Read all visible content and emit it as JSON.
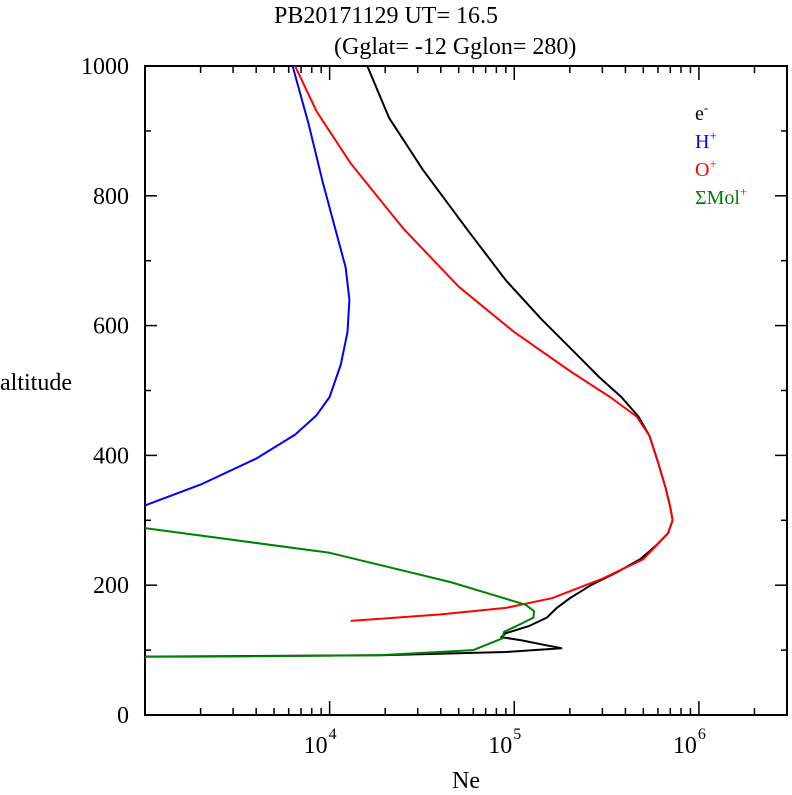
{
  "chart_data": {
    "type": "line",
    "title_line1": "PB20171129   UT=  16.5",
    "title_line2": "(Gglat= -12   Gglon=  280)",
    "xlabel": "Ne",
    "ylabel": "altitude",
    "xscale": "log",
    "xlim": [
      1000,
      3000000
    ],
    "ylim": [
      0,
      1000
    ],
    "y_ticks": [
      "0",
      "200",
      "400",
      "600",
      "800",
      "1000"
    ],
    "x_ticks": [
      {
        "base": "10",
        "exp": "4"
      },
      {
        "base": "10",
        "exp": "5"
      },
      {
        "base": "10",
        "exp": "6"
      }
    ],
    "grid": false,
    "legend_placement": "top-right",
    "series": [
      {
        "name": "e",
        "sup": "-",
        "color": "#000000",
        "points": [
          [
            1000,
            90
          ],
          [
            18000,
            92
          ],
          [
            90000,
            97
          ],
          [
            180000,
            103
          ],
          [
            140000,
            109
          ],
          [
            110000,
            115
          ],
          [
            85000,
            120
          ],
          [
            90000,
            126
          ],
          [
            120000,
            137
          ],
          [
            150000,
            150
          ],
          [
            170000,
            165
          ],
          [
            200000,
            180
          ],
          [
            260000,
            200
          ],
          [
            360000,
            220
          ],
          [
            480000,
            240
          ],
          [
            580000,
            260
          ],
          [
            680000,
            280
          ],
          [
            720000,
            300
          ],
          [
            700000,
            320
          ],
          [
            660000,
            350
          ],
          [
            600000,
            390
          ],
          [
            540000,
            430
          ],
          [
            470000,
            460
          ],
          [
            380000,
            490
          ],
          [
            290000,
            520
          ],
          [
            210000,
            560
          ],
          [
            140000,
            610
          ],
          [
            90000,
            670
          ],
          [
            55000,
            750
          ],
          [
            32000,
            840
          ],
          [
            21000,
            920
          ],
          [
            16000,
            1000
          ]
        ]
      },
      {
        "name": "H",
        "sup": "+",
        "color": "#0000ff",
        "points": [
          [
            1000,
            323
          ],
          [
            2000,
            355
          ],
          [
            4000,
            395
          ],
          [
            6500,
            432
          ],
          [
            8500,
            462
          ],
          [
            10000,
            490
          ],
          [
            11500,
            540
          ],
          [
            12500,
            590
          ],
          [
            12800,
            640
          ],
          [
            12200,
            690
          ],
          [
            10700,
            750
          ],
          [
            9200,
            820
          ],
          [
            7700,
            910
          ],
          [
            6300,
            1000
          ]
        ]
      },
      {
        "name": "O",
        "sup": "+",
        "color": "#ff0000",
        "points": [
          [
            13000,
            145
          ],
          [
            40000,
            155
          ],
          [
            90000,
            165
          ],
          [
            160000,
            180
          ],
          [
            300000,
            210
          ],
          [
            500000,
            240
          ],
          [
            680000,
            280
          ],
          [
            720000,
            300
          ],
          [
            700000,
            320
          ],
          [
            660000,
            350
          ],
          [
            600000,
            390
          ],
          [
            540000,
            430
          ],
          [
            460000,
            460
          ],
          [
            330000,
            490
          ],
          [
            200000,
            530
          ],
          [
            100000,
            590
          ],
          [
            50000,
            660
          ],
          [
            25000,
            750
          ],
          [
            13000,
            850
          ],
          [
            8500,
            930
          ],
          [
            6500,
            1000
          ]
        ]
      },
      {
        "name": "ΣMol",
        "sup": "+",
        "color": "#008000",
        "points": [
          [
            1000,
            288
          ],
          [
            10000,
            250
          ],
          [
            45000,
            205
          ],
          [
            88000,
            180
          ],
          [
            115000,
            170
          ],
          [
            128000,
            160
          ],
          [
            127000,
            150
          ],
          [
            108000,
            140
          ],
          [
            88000,
            128
          ],
          [
            86000,
            118
          ],
          [
            60000,
            100
          ],
          [
            18000,
            92
          ],
          [
            2000,
            90
          ],
          [
            1000,
            90
          ]
        ]
      }
    ]
  }
}
